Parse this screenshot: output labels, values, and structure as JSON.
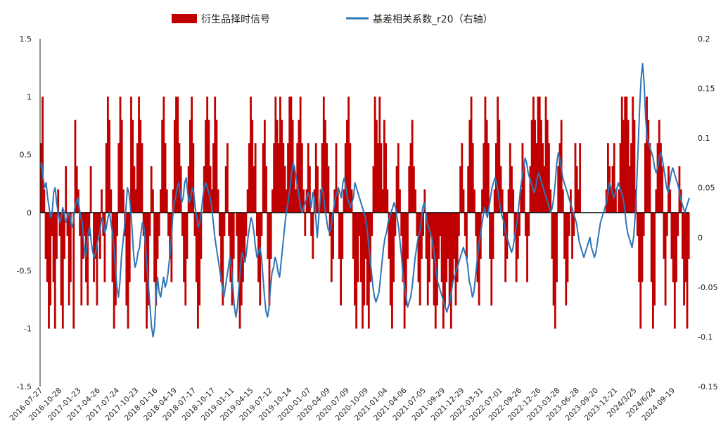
{
  "chart_data": {
    "type": "bar+line",
    "title": "",
    "xlabel": "",
    "ylabel": "",
    "ylim_left": [
      -1.5,
      1.5
    ],
    "ylim_right": [
      -0.15,
      0.2
    ],
    "yticks_left": [
      "1.5",
      "1",
      "0.5",
      "0",
      "-0.5",
      "-1",
      "-1.5"
    ],
    "yticks_right": [
      "0.2",
      "0.15",
      "0.1",
      "0.05",
      "0",
      "-0.05",
      "-0.1",
      "-0.15"
    ],
    "xticks": [
      "2016-07-27",
      "2016-10-28",
      "2017-01-23",
      "2017-04-26",
      "2017-07-24",
      "2017-10-23",
      "2018-01-16",
      "2018-04-19",
      "2018-07-17",
      "2018-10-17",
      "2019-01-11",
      "2019-04-15",
      "2019-07-12",
      "2019-10-14",
      "2020-01-07",
      "2020-04-09",
      "2020-07-09",
      "2020-10-09",
      "2021-01-04",
      "2021-04-06",
      "2021-07-05",
      "2021-09-29",
      "2021-12-29",
      "2022-03-31",
      "2022-07-01",
      "2022-09-26",
      "2022-12-26",
      "2023-03-28",
      "2023-06-28",
      "2023-09-20",
      "2023-12-21",
      "2024/3/25",
      "2024/6/24",
      "2024-09-19"
    ],
    "legend": {
      "position": "top-center",
      "entries": [
        {
          "label": "衍生品择时信号",
          "color": "#C00000",
          "kind": "bar"
        },
        {
          "label": "基差相关系数_r20（右轴）",
          "color": "#2E75B6",
          "kind": "line"
        }
      ]
    },
    "series": [
      {
        "name": "衍生品择时信号",
        "axis": "left",
        "color": "#C00000",
        "values": [
          0.6,
          1.0,
          0.2,
          -0.4,
          -0.6,
          -1.0,
          -0.8,
          -0.2,
          -0.6,
          -1.0,
          -0.4,
          0.2,
          -0.2,
          -0.8,
          -1.0,
          -0.4,
          0.4,
          -0.2,
          -0.8,
          -0.6,
          0.0,
          -1.0,
          0.8,
          0.4,
          0.2,
          -0.2,
          -0.8,
          -0.4,
          -0.2,
          -0.6,
          -0.8,
          -0.2,
          0.4,
          0.0,
          -0.6,
          -0.4,
          -0.8,
          -0.2,
          -0.4,
          0.2,
          -0.2,
          -0.6,
          0.6,
          1.0,
          0.8,
          0.2,
          -0.6,
          -1.0,
          -0.8,
          -0.2,
          0.6,
          1.0,
          0.8,
          0.2,
          -0.2,
          -0.8,
          -1.0,
          -0.6,
          1.0,
          0.8,
          0.4,
          0.2,
          0.6,
          1.0,
          0.8,
          0.6,
          -0.2,
          -0.6,
          -1.0,
          -0.8,
          -0.2,
          0.4,
          0.2,
          -0.6,
          -0.8,
          -0.4,
          -0.2,
          0.2,
          0.8,
          1.0,
          0.6,
          0.2,
          -0.2,
          -0.4,
          -0.6,
          0.2,
          0.8,
          1.0,
          1.0,
          0.6,
          0.4,
          -0.2,
          -0.6,
          -0.8,
          -0.4,
          0.4,
          0.8,
          1.0,
          0.6,
          -0.2,
          -0.6,
          -1.0,
          -0.8,
          -0.4,
          0.0,
          0.4,
          0.8,
          1.0,
          0.8,
          0.4,
          0.2,
          0.6,
          1.0,
          0.8,
          0.2,
          -0.2,
          -0.6,
          -0.8,
          -0.2,
          0.4,
          0.6,
          -0.2,
          -0.6,
          -0.8,
          -0.4,
          0.0,
          -0.2,
          -0.6,
          -1.0,
          -0.8,
          -0.6,
          -0.4,
          -0.2,
          0.2,
          0.6,
          1.0,
          0.8,
          0.4,
          0.6,
          -0.2,
          -0.6,
          -0.8,
          -0.2,
          0.6,
          0.8,
          0.4,
          -0.4,
          -0.8,
          -0.4,
          0.2,
          0.6,
          1.0,
          0.8,
          0.6,
          1.0,
          0.8,
          0.6,
          0.4,
          0.2,
          0.6,
          1.0,
          1.0,
          0.8,
          0.4,
          0.2,
          0.6,
          0.8,
          1.0,
          0.6,
          0.2,
          -0.2,
          0.2,
          0.6,
          0.4,
          -0.2,
          -0.4,
          0.2,
          0.6,
          0.4,
          0.0,
          0.2,
          0.6,
          1.0,
          0.8,
          0.6,
          0.4,
          -0.2,
          -0.6,
          -0.4,
          0.2,
          0.6,
          0.2,
          -0.4,
          -0.8,
          -0.4,
          0.2,
          0.6,
          0.8,
          1.0,
          0.6,
          0.2,
          -0.4,
          -0.8,
          -1.0,
          -0.6,
          -0.2,
          -0.6,
          -1.0,
          -0.8,
          -0.4,
          -0.8,
          -1.0,
          -0.6,
          -0.2,
          0.4,
          1.0,
          0.8,
          0.6,
          1.0,
          0.6,
          0.2,
          0.8,
          0.6,
          0.2,
          -0.4,
          -0.8,
          -1.0,
          -0.6,
          -0.2,
          0.4,
          0.6,
          0.2,
          -0.2,
          -0.6,
          -1.0,
          -0.8,
          -0.4,
          0.4,
          0.6,
          0.8,
          0.4,
          0.2,
          -0.2,
          -0.6,
          -0.8,
          -0.4,
          -0.2,
          0.2,
          -0.4,
          -0.8,
          -0.6,
          -0.2,
          -0.4,
          -0.8,
          -1.0,
          -0.8,
          -0.4,
          -0.2,
          -0.6,
          -1.0,
          -0.8,
          -0.6,
          -0.4,
          -0.8,
          -1.0,
          -0.6,
          -0.4,
          -0.8,
          -0.6,
          -0.2,
          0.4,
          0.6,
          0.2,
          -0.2,
          -0.4,
          0.4,
          0.8,
          1.0,
          0.6,
          0.2,
          -0.2,
          -0.6,
          -0.8,
          -0.4,
          0.2,
          0.6,
          1.0,
          0.8,
          0.6,
          -0.4,
          -0.8,
          -0.4,
          0.2,
          0.6,
          1.0,
          0.8,
          0.4,
          0.2,
          -0.2,
          -0.6,
          -0.4,
          0.2,
          0.6,
          0.4,
          0.2,
          -0.2,
          -0.6,
          -0.4,
          -0.2,
          0.2,
          0.6,
          0.4,
          -0.2,
          -0.6,
          -0.2,
          0.4,
          0.8,
          1.0,
          0.8,
          0.6,
          1.0,
          1.0,
          0.8,
          0.6,
          0.4,
          1.0,
          0.8,
          0.6,
          0.2,
          -0.4,
          -0.8,
          -1.0,
          -0.6,
          0.4,
          0.6,
          0.8,
          0.2,
          -0.4,
          -0.8,
          -0.6,
          -0.2,
          0.2,
          -0.4,
          -0.2,
          0.6,
          0.4,
          0.2,
          0.6,
          0.0,
          0.0,
          0.0,
          0.0,
          0.0,
          0.0,
          0.0,
          0.0,
          0.0,
          0.0,
          0.0,
          0.0,
          0.0,
          0.0,
          0.0,
          0.0,
          0.2,
          0.6,
          0.4,
          0.2,
          0.4,
          0.6,
          0.2,
          0.0,
          0.2,
          0.6,
          1.0,
          0.8,
          1.0,
          1.0,
          0.8,
          0.4,
          0.6,
          1.0,
          0.8,
          0.2,
          -0.2,
          -0.6,
          -1.0,
          -0.6,
          -0.2,
          0.6,
          1.0,
          0.8,
          0.6,
          -0.6,
          -1.0,
          -0.8,
          0.2,
          0.6,
          0.8,
          0.6,
          0.4,
          -0.4,
          -0.8,
          -0.2,
          0.4,
          0.2,
          -0.4,
          -0.6,
          -1.0,
          -0.6,
          -0.2,
          0.4,
          0.2,
          -0.4,
          -0.8,
          -0.6,
          -1.0,
          -0.4
        ],
        "note": "daily signal, sampled"
      },
      {
        "name": "基差相关系数_r20（右轴）",
        "axis": "right",
        "color": "#2E75B6",
        "values": [
          0.07,
          0.075,
          0.06,
          0.05,
          0.055,
          0.04,
          0.03,
          0.02,
          0.025,
          0.045,
          0.05,
          0.035,
          0.025,
          0.015,
          0.02,
          0.03,
          0.025,
          0.015,
          0.02,
          0.025,
          0.02,
          0.01,
          0.015,
          0.03,
          0.035,
          0.04,
          0.03,
          0.02,
          0.015,
          -0.005,
          -0.02,
          -0.01,
          0.005,
          0.01,
          -0.005,
          -0.015,
          -0.02,
          -0.015,
          -0.005,
          0.0,
          0.01,
          0.02,
          0.015,
          0.005,
          0.01,
          0.02,
          0.025,
          0.015,
          0.005,
          -0.01,
          -0.03,
          -0.05,
          -0.06,
          -0.045,
          -0.02,
          -0.005,
          0.01,
          0.03,
          0.05,
          0.045,
          0.03,
          0.01,
          -0.015,
          -0.03,
          -0.025,
          -0.015,
          -0.01,
          0.005,
          0.015,
          0.01,
          -0.01,
          -0.03,
          -0.05,
          -0.07,
          -0.09,
          -0.1,
          -0.09,
          -0.06,
          -0.04,
          -0.055,
          -0.06,
          -0.05,
          -0.04,
          -0.05,
          -0.045,
          -0.035,
          -0.02,
          -0.005,
          0.02,
          0.035,
          0.04,
          0.05,
          0.055,
          0.045,
          0.035,
          0.04,
          0.055,
          0.06,
          0.045,
          0.035,
          0.04,
          0.05,
          0.045,
          0.03,
          0.02,
          0.01,
          0.015,
          0.025,
          0.04,
          0.05,
          0.055,
          0.05,
          0.045,
          0.04,
          0.03,
          0.015,
          0.0,
          -0.01,
          -0.02,
          -0.03,
          -0.04,
          -0.05,
          -0.06,
          -0.05,
          -0.04,
          -0.03,
          -0.02,
          -0.03,
          -0.05,
          -0.07,
          -0.08,
          -0.07,
          -0.05,
          -0.03,
          -0.015,
          -0.02,
          -0.025,
          -0.015,
          0.0,
          0.01,
          0.02,
          0.015,
          0.005,
          -0.01,
          -0.02,
          -0.015,
          -0.01,
          -0.02,
          -0.04,
          -0.06,
          -0.075,
          -0.08,
          -0.07,
          -0.05,
          -0.035,
          -0.03,
          -0.02,
          -0.025,
          -0.035,
          -0.04,
          -0.025,
          -0.01,
          0.005,
          0.02,
          0.03,
          0.04,
          0.05,
          0.065,
          0.075,
          0.07,
          0.06,
          0.05,
          0.04,
          0.03,
          0.025,
          0.03,
          0.035,
          0.04,
          0.045,
          0.04,
          0.03,
          0.045,
          0.04,
          0.02,
          0.0,
          0.02,
          0.04,
          0.05,
          0.045,
          0.03,
          0.02,
          0.01,
          0.005,
          0.01,
          0.02,
          0.03,
          0.04,
          0.045,
          0.05,
          0.045,
          0.04,
          0.055,
          0.06,
          0.05,
          0.04,
          0.035,
          0.03,
          0.035,
          0.04,
          0.055,
          0.05,
          0.045,
          0.04,
          0.035,
          0.03,
          0.025,
          0.02,
          0.01,
          -0.005,
          -0.02,
          -0.035,
          -0.05,
          -0.06,
          -0.065,
          -0.06,
          -0.055,
          -0.04,
          -0.025,
          -0.01,
          0.0,
          0.005,
          0.015,
          0.02,
          0.025,
          0.03,
          0.035,
          0.03,
          0.02,
          0.01,
          -0.005,
          -0.02,
          -0.04,
          -0.05,
          -0.06,
          -0.07,
          -0.065,
          -0.06,
          -0.05,
          -0.035,
          -0.02,
          -0.01,
          0.0,
          0.005,
          0.015,
          0.03,
          0.035,
          0.025,
          0.015,
          0.01,
          0.005,
          0.0,
          -0.01,
          -0.02,
          -0.035,
          -0.045,
          -0.05,
          -0.055,
          -0.06,
          -0.065,
          -0.07,
          -0.075,
          -0.07,
          -0.065,
          -0.055,
          -0.045,
          -0.04,
          -0.035,
          -0.03,
          -0.025,
          -0.02,
          -0.015,
          -0.01,
          -0.015,
          -0.02,
          -0.03,
          -0.045,
          -0.05,
          -0.06,
          -0.055,
          -0.04,
          -0.025,
          -0.01,
          0.0,
          0.01,
          0.02,
          0.03,
          0.025,
          0.02,
          0.03,
          0.04,
          0.05,
          0.055,
          0.06,
          0.055,
          0.045,
          0.035,
          0.025,
          0.02,
          0.015,
          0.005,
          0.0,
          -0.005,
          -0.01,
          -0.015,
          -0.01,
          0.0,
          0.01,
          0.02,
          0.035,
          0.05,
          0.06,
          0.07,
          0.08,
          0.075,
          0.065,
          0.06,
          0.055,
          0.05,
          0.045,
          0.05,
          0.06,
          0.065,
          0.06,
          0.055,
          0.05,
          0.045,
          0.04,
          0.035,
          0.03,
          0.025,
          0.03,
          0.04,
          0.055,
          0.075,
          0.085,
          0.08,
          0.07,
          0.06,
          0.055,
          0.05,
          0.045,
          0.04,
          0.035,
          0.03,
          0.025,
          0.02,
          0.015,
          0.005,
          -0.005,
          -0.01,
          -0.015,
          -0.02,
          -0.015,
          -0.01,
          -0.005,
          0.0,
          -0.01,
          -0.015,
          -0.02,
          -0.015,
          -0.005,
          0.005,
          0.015,
          0.02,
          0.025,
          0.03,
          0.035,
          0.045,
          0.055,
          0.05,
          0.045,
          0.04,
          0.045,
          0.05,
          0.055,
          0.05,
          0.045,
          0.04,
          0.03,
          0.015,
          0.005,
          0.0,
          -0.005,
          -0.01,
          -0.0,
          0.02,
          0.05,
          0.09,
          0.13,
          0.16,
          0.175,
          0.155,
          0.12,
          0.1,
          0.095,
          0.09,
          0.085,
          0.08,
          0.07,
          0.065,
          0.07,
          0.08,
          0.085,
          0.08,
          0.07,
          0.06,
          0.05,
          0.045,
          0.055,
          0.065,
          0.07,
          0.065,
          0.06,
          0.055,
          0.05,
          0.04,
          0.035,
          0.03,
          0.025,
          0.03,
          0.035,
          0.04
        ]
      }
    ]
  }
}
